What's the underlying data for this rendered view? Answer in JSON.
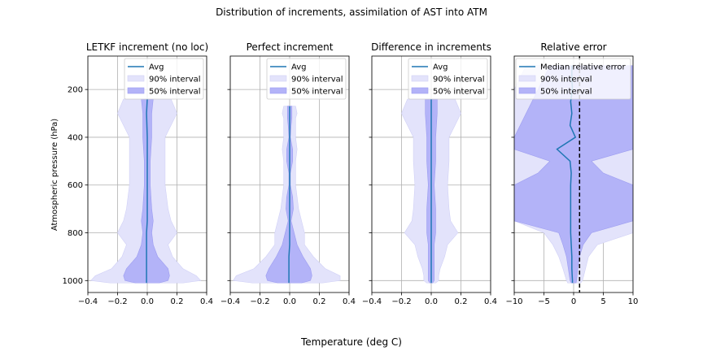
{
  "figure": {
    "suptitle": "Distribution of increments, assimilation of AST into ATM",
    "xlabel": "Temperature (deg C)",
    "ylabel": "Atmospheric pressure (hPa)",
    "colors": {
      "line": "#1f77b4",
      "band90": "#e3e3fb",
      "band50": "#b3b3f8",
      "band_edge90": "#d0d0f6",
      "band_edge50": "#9c9cf0",
      "grid": "#b0b0b0"
    }
  },
  "chart_data": [
    {
      "type": "area",
      "title": "LETKF increment (no loc)",
      "xlim": [
        -0.4,
        0.4
      ],
      "ylim": [
        1050,
        60
      ],
      "y_inverted": true,
      "xticks": [
        "−0.4",
        "−0.2",
        "0.0",
        "0.2",
        "0.4"
      ],
      "yticks": [
        "200",
        "400",
        "600",
        "800",
        "1000"
      ],
      "grid": true,
      "legend_position": "top-right",
      "legend": [
        "Avg",
        "90% interval",
        "50% interval"
      ],
      "pressure": [
        240,
        300,
        400,
        500,
        600,
        700,
        750,
        800,
        850,
        900,
        950,
        980,
        1000,
        1010
      ],
      "median": [
        0.0,
        -0.005,
        0.0,
        0.0,
        0.0,
        0.0,
        0.0,
        -0.005,
        -0.005,
        -0.005,
        -0.005,
        -0.005,
        -0.005,
        -0.005
      ],
      "p90_low": [
        -0.16,
        -0.2,
        -0.12,
        -0.12,
        -0.12,
        -0.14,
        -0.16,
        -0.2,
        -0.14,
        -0.17,
        -0.24,
        -0.35,
        -0.38,
        -0.25
      ],
      "p90_high": [
        0.16,
        0.2,
        0.12,
        0.12,
        0.12,
        0.14,
        0.16,
        0.2,
        0.14,
        0.17,
        0.24,
        0.33,
        0.36,
        0.24
      ],
      "p50_low": [
        -0.04,
        -0.03,
        -0.03,
        -0.02,
        -0.02,
        -0.03,
        -0.04,
        -0.03,
        -0.04,
        -0.07,
        -0.14,
        -0.16,
        -0.15,
        -0.08
      ],
      "p50_high": [
        0.04,
        0.03,
        0.03,
        0.02,
        0.02,
        0.03,
        0.04,
        0.03,
        0.04,
        0.07,
        0.14,
        0.15,
        0.14,
        0.08
      ]
    },
    {
      "type": "area",
      "title": "Perfect increment",
      "xlim": [
        -0.4,
        0.4
      ],
      "ylim": [
        1050,
        60
      ],
      "y_inverted": true,
      "xticks": [
        "−0.4",
        "−0.2",
        "0.0",
        "0.2",
        "0.4"
      ],
      "yticks": [],
      "grid": true,
      "legend_position": "top-right",
      "legend": [
        "Avg",
        "90% interval",
        "50% interval"
      ],
      "pressure": [
        270,
        300,
        320,
        350,
        400,
        450,
        500,
        550,
        600,
        650,
        700,
        750,
        800,
        850,
        900,
        950,
        980,
        1000,
        1010
      ],
      "median": [
        0.0,
        0.0,
        0.0,
        0.0,
        0.0,
        0.0,
        0.0,
        0.0,
        0.0,
        0.0,
        0.0,
        0.0,
        0.0,
        0.0,
        -0.005,
        -0.005,
        -0.005,
        -0.005,
        -0.005
      ],
      "p90_low": [
        -0.04,
        -0.05,
        -0.04,
        -0.04,
        -0.04,
        -0.05,
        -0.04,
        -0.04,
        -0.04,
        -0.05,
        -0.06,
        -0.08,
        -0.1,
        -0.1,
        -0.16,
        -0.24,
        -0.36,
        -0.38,
        -0.25
      ],
      "p90_high": [
        0.04,
        0.05,
        0.04,
        0.04,
        0.04,
        0.05,
        0.04,
        0.04,
        0.04,
        0.05,
        0.06,
        0.08,
        0.1,
        0.1,
        0.16,
        0.24,
        0.34,
        0.34,
        0.22
      ],
      "p50_low": [
        -0.015,
        -0.015,
        -0.015,
        -0.01,
        -0.005,
        -0.02,
        -0.02,
        -0.005,
        -0.005,
        -0.02,
        -0.025,
        -0.01,
        -0.03,
        -0.05,
        -0.09,
        -0.14,
        -0.16,
        -0.15,
        -0.08
      ],
      "p50_high": [
        0.015,
        0.015,
        0.015,
        0.01,
        0.005,
        0.02,
        0.02,
        0.005,
        0.005,
        0.02,
        0.025,
        0.01,
        0.03,
        0.05,
        0.09,
        0.14,
        0.15,
        0.14,
        0.08
      ]
    },
    {
      "type": "area",
      "title": "Difference in increments",
      "xlim": [
        -0.4,
        0.4
      ],
      "ylim": [
        1050,
        60
      ],
      "y_inverted": true,
      "xticks": [
        "−0.4",
        "−0.2",
        "0.0",
        "0.2",
        "0.4"
      ],
      "yticks": [],
      "grid": true,
      "legend_position": "top-right",
      "legend": [
        "Avg",
        "90% interval",
        "50% interval"
      ],
      "pressure": [
        240,
        300,
        400,
        500,
        600,
        700,
        750,
        800,
        850,
        900,
        950,
        980,
        1000,
        1010
      ],
      "median": [
        0.0,
        0.0,
        0.0,
        0.0,
        0.0,
        0.0,
        0.0,
        0.0,
        0.0,
        0.0,
        0.0,
        0.0,
        0.0,
        0.0
      ],
      "p90_low": [
        -0.16,
        -0.2,
        -0.12,
        -0.12,
        -0.11,
        -0.12,
        -0.13,
        -0.18,
        -0.11,
        -0.09,
        -0.06,
        -0.05,
        -0.05,
        -0.03
      ],
      "p90_high": [
        0.16,
        0.2,
        0.12,
        0.12,
        0.11,
        0.12,
        0.13,
        0.18,
        0.11,
        0.09,
        0.06,
        0.05,
        0.05,
        0.03
      ],
      "p50_low": [
        -0.04,
        -0.04,
        -0.03,
        -0.03,
        -0.02,
        -0.03,
        -0.03,
        -0.03,
        -0.02,
        -0.02,
        -0.02,
        -0.02,
        -0.02,
        -0.01
      ],
      "p50_high": [
        0.04,
        0.04,
        0.03,
        0.03,
        0.02,
        0.03,
        0.03,
        0.03,
        0.02,
        0.02,
        0.02,
        0.02,
        0.02,
        0.01
      ]
    },
    {
      "type": "area",
      "title": "Relative error",
      "xlim": [
        -10,
        10
      ],
      "ylim": [
        1050,
        60
      ],
      "y_inverted": true,
      "xticks": [
        "−10",
        "−5",
        "0",
        "5",
        "10"
      ],
      "yticks": [],
      "grid": true,
      "legend_position": "top-right",
      "legend": [
        "Median relative error",
        "90% interval",
        "50% interval"
      ],
      "vline": 1,
      "pressure": [
        100,
        150,
        200,
        250,
        300,
        350,
        400,
        450,
        500,
        550,
        600,
        650,
        700,
        750,
        800,
        850,
        900,
        950,
        1000,
        1010
      ],
      "median": [
        -0.3,
        -0.3,
        -0.2,
        -0.5,
        -0.3,
        -0.6,
        0.3,
        -2.8,
        -0.6,
        -0.4,
        -0.5,
        -0.5,
        -0.5,
        -0.5,
        -0.5,
        -0.4,
        -0.3,
        -0.3,
        -0.2,
        -0.2
      ],
      "p90_low": [
        -8,
        -9,
        -10,
        -10,
        -10,
        -10,
        -10,
        -10,
        -10,
        -10,
        -10,
        -10,
        -10,
        -10,
        -5,
        -3.5,
        -2.5,
        -1.8,
        -1.2,
        -1.0
      ],
      "p90_high": [
        10,
        10,
        10,
        10,
        10,
        10,
        10,
        10,
        10,
        10,
        10,
        10,
        10,
        10,
        10,
        4,
        2.5,
        2,
        1.5,
        1.2
      ],
      "p50_low": [
        -4,
        -5,
        -6,
        -7,
        -8,
        -9,
        -10,
        -10,
        -4,
        -6,
        -10,
        -10,
        -10,
        -10,
        -2.5,
        -1.8,
        -1.2,
        -0.9,
        -0.6,
        -0.4
      ],
      "p50_high": [
        10,
        10,
        10,
        10,
        10,
        10,
        10,
        10,
        3,
        5,
        10,
        10,
        10,
        10,
        3,
        1.6,
        1.0,
        0.7,
        0.5,
        0.4
      ]
    }
  ]
}
